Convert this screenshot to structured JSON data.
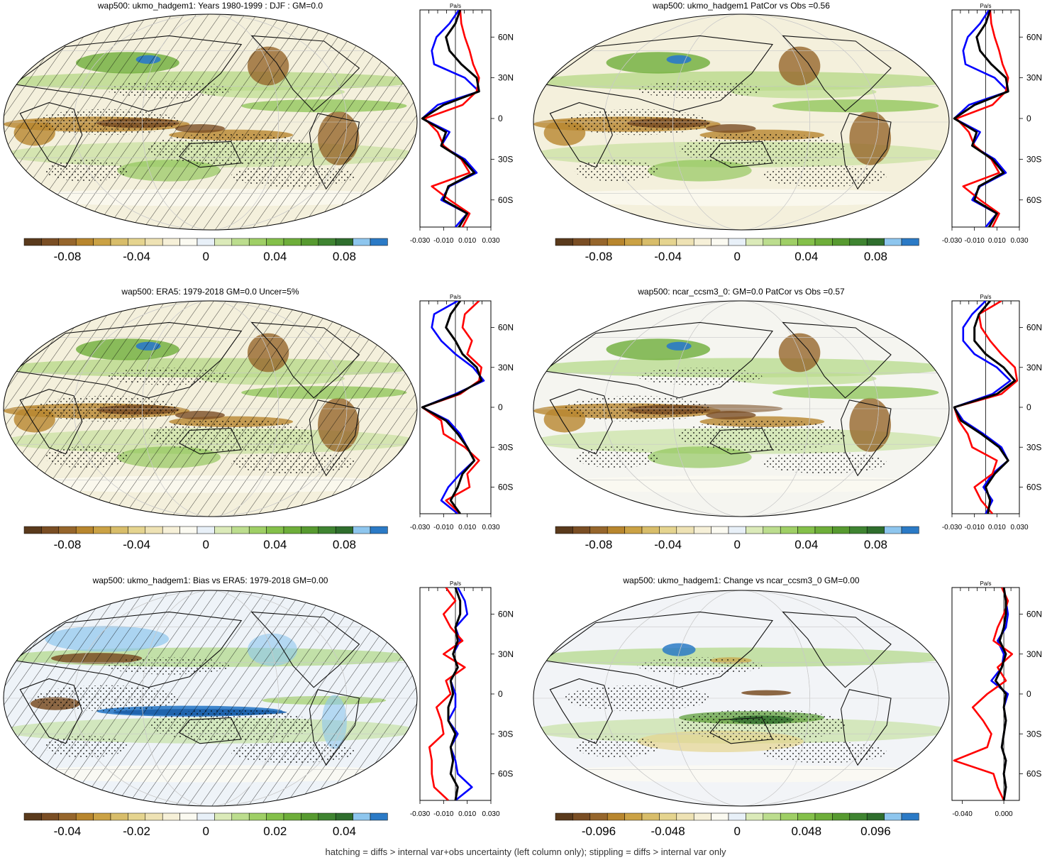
{
  "colors": {
    "palette": [
      "#5a3a1c",
      "#7a4e24",
      "#96662c",
      "#b8862e",
      "#cba245",
      "#d8bd6a",
      "#e5d48f",
      "#eee2b4",
      "#f6f0d8",
      "#fbfaf1",
      "#e8f0f8",
      "#dbeab9",
      "#bcdd8e",
      "#9fcf66",
      "#84c04a",
      "#6eae3a",
      "#579a30",
      "#3f8431",
      "#2f6e2d",
      "#8ec6ee",
      "#2b7ac6"
    ],
    "obs": "#0000ff",
    "model": "#ff0000",
    "mean": "#000000"
  },
  "panels": [
    {
      "title": "wap500: ukmo_hadgem1: Years 1980-1999 : DJF : GM=0.0",
      "colorbar": [
        "-0.08",
        "-0.04",
        "0",
        "0.04",
        "0.08"
      ],
      "hatching": true,
      "profile": {
        "units": "Pa/s",
        "xticks": [
          "-0.030",
          "-0.010",
          "0.010",
          "0.030"
        ],
        "xlim": [
          -0.03,
          0.03
        ],
        "lat_ticks": [
          "60N",
          "30N",
          "0",
          "30S",
          "60S"
        ]
      }
    },
    {
      "title": "wap500: ukmo_hadgem1 PatCor vs Obs =0.56",
      "colorbar": [
        "-0.08",
        "-0.04",
        "0",
        "0.04",
        "0.08"
      ],
      "hatching": false,
      "profile": {
        "units": "Pa/s",
        "xticks": [
          "-0.030",
          "-0.010",
          "0.010",
          "0.030"
        ],
        "xlim": [
          -0.03,
          0.03
        ],
        "lat_ticks": [
          "60N",
          "30N",
          "0",
          "30S",
          "60S"
        ]
      }
    },
    {
      "title": "wap500: ERA5: 1979-2018 GM=0.0 Uncer=5%",
      "colorbar": [
        "-0.08",
        "-0.04",
        "0",
        "0.04",
        "0.08"
      ],
      "hatching": true,
      "profile": {
        "units": "Pa/s",
        "xticks": [
          "-0.030",
          "-0.010",
          "0.010",
          "0.030"
        ],
        "xlim": [
          -0.03,
          0.03
        ],
        "lat_ticks": [
          "60N",
          "30N",
          "0",
          "30S",
          "60S"
        ]
      }
    },
    {
      "title": "wap500: ncar_ccsm3_0: GM=0.0 PatCor vs Obs =0.57",
      "colorbar": [
        "-0.08",
        "-0.04",
        "0",
        "0.04",
        "0.08"
      ],
      "hatching": false,
      "profile": {
        "units": "Pa/s",
        "xticks": [
          "-0.030",
          "-0.010",
          "0.010",
          "0.030"
        ],
        "xlim": [
          -0.03,
          0.03
        ],
        "lat_ticks": [
          "60N",
          "30N",
          "0",
          "30S",
          "60S"
        ]
      }
    },
    {
      "title": "wap500: ukmo_hadgem1: Bias vs ERA5: 1979-2018 GM=0.00",
      "colorbar": [
        "-0.04",
        "-0.02",
        "0",
        "0.02",
        "0.04"
      ],
      "hatching": true,
      "profile": {
        "units": "Pa/s",
        "xticks": [
          "-0.030",
          "-0.010",
          "0.010",
          "0.030"
        ],
        "xlim": [
          -0.03,
          0.03
        ],
        "lat_ticks": [
          "60N",
          "30N",
          "0",
          "30S",
          "60S"
        ]
      }
    },
    {
      "title": "wap500: ukmo_hadgem1: Change vs ncar_ccsm3_0 GM=0.00",
      "colorbar": [
        "-0.096",
        "-0.048",
        "0",
        "0.048",
        "0.096"
      ],
      "hatching": false,
      "profile": {
        "units": "Pa/s",
        "xticks": [
          "-0.040",
          "0.000"
        ],
        "xlim": [
          -0.05,
          0.015
        ],
        "lat_ticks": [
          "60N",
          "30N",
          "0",
          "30S",
          "60S"
        ]
      }
    }
  ],
  "footer": "hatching = diffs > internal var+obs uncertainty (left column only); stippling = diffs > internal var only",
  "chart_data": {
    "type": "heatmap",
    "variable": "wap500",
    "units": "Pa/s",
    "colorbar_ranges": [
      {
        "panel": 1,
        "levels": [
          -0.1,
          0.1
        ],
        "ticks": [
          -0.08,
          -0.04,
          0,
          0.04,
          0.08
        ]
      },
      {
        "panel": 2,
        "levels": [
          -0.1,
          0.1
        ],
        "ticks": [
          -0.08,
          -0.04,
          0,
          0.04,
          0.08
        ]
      },
      {
        "panel": 3,
        "levels": [
          -0.1,
          0.1
        ],
        "ticks": [
          -0.08,
          -0.04,
          0,
          0.04,
          0.08
        ]
      },
      {
        "panel": 4,
        "levels": [
          -0.1,
          0.1
        ],
        "ticks": [
          -0.08,
          -0.04,
          0,
          0.04,
          0.08
        ]
      },
      {
        "panel": 5,
        "levels": [
          -0.05,
          0.05
        ],
        "ticks": [
          -0.04,
          -0.02,
          0,
          0.02,
          0.04
        ]
      },
      {
        "panel": 6,
        "levels": [
          -0.12,
          0.12
        ],
        "ticks": [
          -0.096,
          -0.048,
          0,
          0.048,
          0.096
        ]
      }
    ],
    "zonal_mean_profiles": {
      "type": "line",
      "y": "latitude",
      "lat": [
        80,
        70,
        60,
        50,
        40,
        30,
        20,
        10,
        0,
        -10,
        -20,
        -30,
        -40,
        -50,
        -60,
        -70,
        -80
      ],
      "panels": [
        {
          "panel": 1,
          "series": [
            {
              "color": "blue",
              "x": [
                0.003,
                -0.005,
                -0.016,
                -0.02,
                -0.018,
                0.008,
                0.02,
                -0.015,
                -0.028,
                -0.005,
                -0.012,
                0.008,
                0.018,
                -0.005,
                -0.012,
                0.01,
                0.0
              ]
            },
            {
              "color": "red",
              "x": [
                0.004,
                0.005,
                0.008,
                0.012,
                0.015,
                0.02,
                0.018,
                0.006,
                -0.026,
                -0.015,
                -0.01,
                0.005,
                0.012,
                -0.02,
                -0.005,
                0.012,
                0.006
              ]
            },
            {
              "color": "black",
              "x": [
                0.004,
                0.0,
                -0.008,
                -0.005,
                0.005,
                0.018,
                0.02,
                -0.01,
                -0.028,
                -0.008,
                -0.012,
                0.006,
                0.016,
                -0.006,
                -0.01,
                0.01,
                0.003
              ]
            }
          ]
        },
        {
          "panel": 2,
          "series": [
            {
              "color": "blue",
              "x": [
                0.003,
                -0.005,
                -0.016,
                -0.02,
                -0.018,
                0.008,
                0.02,
                -0.015,
                -0.028,
                -0.005,
                -0.012,
                0.008,
                0.018,
                -0.005,
                -0.012,
                0.01,
                0.0
              ]
            },
            {
              "color": "red",
              "x": [
                0.004,
                0.005,
                0.008,
                0.012,
                0.015,
                0.02,
                0.018,
                0.006,
                -0.026,
                -0.015,
                -0.01,
                0.005,
                0.012,
                -0.02,
                -0.005,
                0.012,
                0.006
              ]
            },
            {
              "color": "black",
              "x": [
                0.004,
                0.0,
                -0.008,
                -0.005,
                0.005,
                0.018,
                0.02,
                -0.01,
                -0.028,
                -0.008,
                -0.012,
                0.006,
                0.016,
                -0.006,
                -0.01,
                0.01,
                0.003
              ]
            }
          ]
        },
        {
          "panel": 3,
          "series": [
            {
              "color": "blue",
              "x": [
                0.002,
                -0.018,
                -0.02,
                -0.012,
                0.0,
                0.015,
                0.024,
                0.0,
                -0.028,
                -0.006,
                0.004,
                0.01,
                0.016,
                0.004,
                -0.006,
                -0.012,
                0.002
              ]
            },
            {
              "color": "red",
              "x": [
                0.02,
                0.008,
                0.006,
                0.014,
                0.01,
                0.022,
                0.02,
                0.004,
                -0.028,
                -0.012,
                -0.01,
                0.008,
                0.02,
                0.01,
                0.012,
                -0.008,
                0.004
              ]
            },
            {
              "color": "black",
              "x": [
                0.004,
                -0.004,
                -0.008,
                0.0,
                0.006,
                0.018,
                0.022,
                0.002,
                -0.028,
                -0.008,
                0.002,
                0.01,
                0.016,
                0.006,
                0.002,
                -0.004,
                0.004
              ]
            }
          ]
        },
        {
          "panel": 4,
          "series": [
            {
              "color": "blue",
              "x": [
                0.0,
                -0.012,
                -0.02,
                -0.02,
                -0.01,
                0.01,
                0.022,
                0.006,
                -0.028,
                -0.02,
                -0.002,
                0.014,
                0.02,
                0.006,
                -0.002,
                0.006,
                0.0
              ]
            },
            {
              "color": "red",
              "x": [
                0.014,
                -0.006,
                -0.004,
                0.004,
                0.014,
                0.026,
                0.028,
                0.014,
                -0.028,
                -0.024,
                -0.016,
                -0.012,
                0.01,
                0.006,
                -0.01,
                -0.004,
                0.006
              ]
            },
            {
              "color": "black",
              "x": [
                0.004,
                -0.006,
                -0.01,
                -0.01,
                0.0,
                0.016,
                0.026,
                0.01,
                -0.028,
                -0.022,
                -0.004,
                0.012,
                0.02,
                0.008,
                0.0,
                0.004,
                0.002
              ]
            }
          ]
        },
        {
          "panel": 5,
          "series": [
            {
              "color": "blue",
              "x": [
                0.002,
                0.008,
                0.01,
                0.0,
                0.004,
                -0.002,
                0.002,
                -0.004,
                0.0,
                0.0,
                -0.006,
                0.002,
                -0.004,
                0.0,
                0.002,
                0.014,
                0.0
              ]
            },
            {
              "color": "red",
              "x": [
                -0.008,
                0.0,
                -0.01,
                -0.004,
                0.006,
                -0.01,
                0.008,
                -0.008,
                -0.004,
                -0.016,
                -0.012,
                -0.01,
                -0.022,
                -0.02,
                -0.02,
                -0.018,
                -0.006
              ]
            },
            {
              "color": "black",
              "x": [
                0.0,
                0.004,
                0.004,
                0.0,
                0.002,
                -0.002,
                0.002,
                -0.004,
                -0.002,
                -0.006,
                -0.006,
                0.0,
                -0.004,
                -0.002,
                -0.004,
                0.002,
                0.0
              ]
            }
          ]
        },
        {
          "panel": 6,
          "series": [
            {
              "color": "blue",
              "x": [
                0.0,
                0.002,
                0.004,
                0.002,
                -0.006,
                0.0,
                -0.002,
                -0.012,
                0.004,
                0.0,
                0.002,
                0.0,
                -0.002,
                0.002,
                0.0,
                0.002,
                0.0
              ]
            },
            {
              "color": "red",
              "x": [
                -0.002,
                0.004,
                0.0,
                -0.006,
                -0.01,
                0.008,
                -0.006,
                0.002,
                -0.016,
                -0.03,
                -0.02,
                -0.012,
                -0.016,
                -0.048,
                -0.01,
                -0.006,
                0.0
              ]
            },
            {
              "color": "black",
              "x": [
                0.0,
                0.002,
                0.002,
                0.0,
                -0.004,
                0.002,
                -0.002,
                -0.008,
                0.002,
                0.0,
                0.002,
                0.0,
                -0.002,
                0.002,
                0.0,
                0.002,
                0.0
              ]
            }
          ]
        }
      ]
    }
  }
}
